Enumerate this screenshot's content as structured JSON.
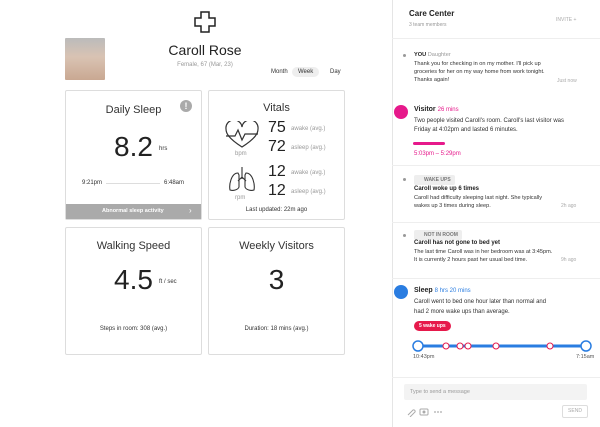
{
  "profile": {
    "name": "Caroll Rose",
    "details": "Female, 67 (Mar, 23)",
    "range_options": [
      "Month",
      "Week",
      "Day"
    ]
  },
  "cards": {
    "daily_sleep": {
      "title": "Daily Sleep",
      "value": "8.2",
      "unit": "hrs",
      "start": "9:21pm",
      "end": "6:48am",
      "alert": "Abnormal sleep activity"
    },
    "vitals": {
      "title": "Vitals",
      "heart_awake": "75",
      "heart_asleep": "72",
      "heart_unit": "bpm",
      "resp_awake": "12",
      "resp_asleep": "12",
      "resp_unit": "rpm",
      "awake_label": "awake (avg.)",
      "asleep_label": "asleep (avg.)",
      "updated": "Last updated: 22m ago"
    },
    "walking_speed": {
      "title": "Walking Speed",
      "value": "4.5",
      "unit": "ft / sec",
      "note": "Steps in room: 308 (avg.)"
    },
    "weekly_visitors": {
      "title": "Weekly Visitors",
      "value": "3",
      "note": "Duration: 18 mins (avg.)"
    }
  },
  "care_center": {
    "title": "Care Center",
    "subtitle": "3 team members",
    "invite": "INVITE",
    "messages": [
      {
        "author": "YOU",
        "role": "Daughter",
        "text": "Thank you for checking in on my mother. I'll pick up groceries for her on my way home from work tonight. Thanks again!",
        "time": "Just now"
      },
      {
        "author": "Visitor",
        "duration": "26 mins",
        "text": "Two people visited Caroll's room. Caroll's last visitor was Friday at 4:02pm and lasted 6 minutes.",
        "range": "5:03pm – 5:29pm"
      },
      {
        "tag": "WAKE UPS",
        "heading": "Caroll woke up 6 times",
        "text": "Caroll had difficulty sleeping last night. She typically wakes up 3 times during sleep.",
        "time": "2h ago"
      },
      {
        "tag": "NOT IN ROOM",
        "heading": "Caroll has not gone to bed yet",
        "text": "The last time Caroll was in her bedroom was at 3:45pm. It is currently 2 hours past her usual bed time.",
        "time": "9h ago"
      },
      {
        "author": "Sleep",
        "duration": "8 hrs 20 mins",
        "text": "Caroll went to bed one hour later than normal and had 2 more wake ups than average.",
        "badge": "5 wake ups",
        "start": "10:43pm",
        "end": "7:15am"
      }
    ],
    "input_placeholder": "Type to send a message",
    "send": "SEND"
  }
}
